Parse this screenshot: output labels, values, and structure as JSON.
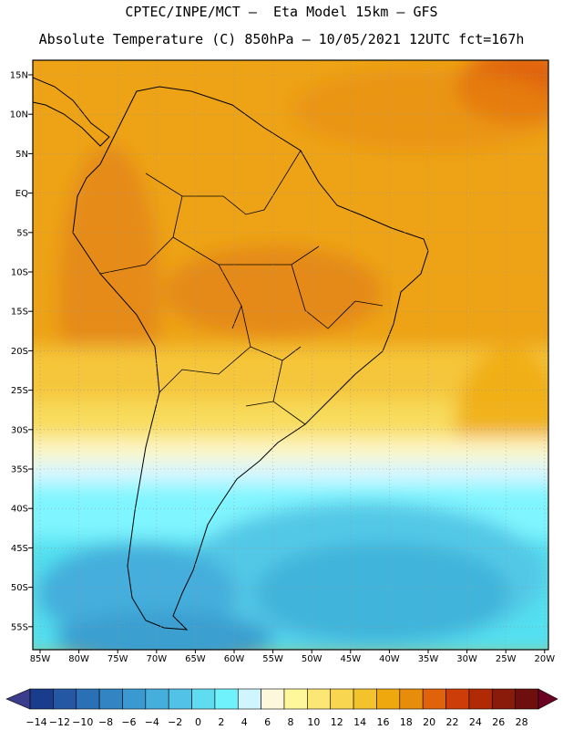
{
  "header": {
    "line1": "CPTEC/INPE/MCT –  Eta Model 15km – GFS",
    "line2": "Absolute Temperature (C) 850hPa – 10/05/2021 12UTC fct=167h"
  },
  "map": {
    "lat_labels": [
      "15N",
      "10N",
      "5N",
      "EQ",
      "5S",
      "10S",
      "15S",
      "20S",
      "25S",
      "30S",
      "35S",
      "40S",
      "45S",
      "50S",
      "55S"
    ],
    "lon_labels": [
      "85W",
      "80W",
      "75W",
      "70W",
      "65W",
      "60W",
      "55W",
      "50W",
      "45W",
      "40W",
      "35W",
      "30W",
      "25W",
      "20W"
    ],
    "palette": {
      "warm_22": "#e3851a",
      "warm_20": "#eea316",
      "warm_18": "#f3b71c",
      "mild_16": "#f5c63a",
      "mild_14": "#f8dc5c",
      "mild_10": "#fdf6c2",
      "cool_6": "#d8f7ff",
      "cool_4": "#7ff5ff",
      "cool_2": "#52e0f0",
      "cold_0": "#52c8e6",
      "cold_m2": "#3fb4da",
      "cold_m4": "#3a9fd0",
      "land_line": "#000000"
    }
  },
  "colorbar": {
    "labels": [
      "-14",
      "-12",
      "-10",
      "-8",
      "-6",
      "-4",
      "-2",
      "0",
      "2",
      "4",
      "6",
      "8",
      "10",
      "12",
      "14",
      "16",
      "18",
      "20",
      "22",
      "24",
      "26",
      "28"
    ],
    "colors": [
      "#1a3c8c",
      "#2558a4",
      "#2b6fb4",
      "#3284c2",
      "#3a9ad0",
      "#45aedc",
      "#52c3e6",
      "#5fdcef",
      "#70f2fc",
      "#cff6ff",
      "#fdf8dc",
      "#fff89a",
      "#fce774",
      "#f9d64f",
      "#f4c22d",
      "#efa90f",
      "#e88c0c",
      "#e0620b",
      "#cd3d0a",
      "#b02a06",
      "#8a1b0a",
      "#6e0f0f"
    ],
    "left_end": "#3c3c8c",
    "right_end": "#6a0224"
  }
}
